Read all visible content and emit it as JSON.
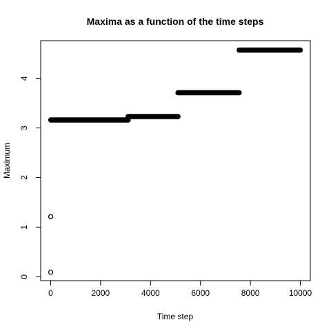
{
  "chart_data": {
    "type": "scatter",
    "title": "Maxima as a function of the time steps",
    "xlabel": "Time step",
    "ylabel": "Maximum",
    "xlim": [
      -400,
      10400
    ],
    "ylim": [
      -0.08,
      4.76
    ],
    "xticks": [
      0,
      2000,
      4000,
      6000,
      8000,
      10000
    ],
    "yticks": [
      0,
      1,
      2,
      3,
      4
    ],
    "marker": "open-circle",
    "grid": false,
    "points": [
      {
        "x": 1,
        "y": 0.09
      },
      {
        "x": 2,
        "y": 1.21
      },
      {
        "x": 3,
        "y": 1.21
      }
    ],
    "steps": [
      {
        "x_start": 5,
        "x_end": 3100,
        "y": 3.16
      },
      {
        "x_start": 3100,
        "x_end": 5100,
        "y": 3.23
      },
      {
        "x_start": 5100,
        "x_end": 7550,
        "y": 3.71
      },
      {
        "x_start": 7550,
        "x_end": 10000,
        "y": 4.57
      }
    ]
  }
}
